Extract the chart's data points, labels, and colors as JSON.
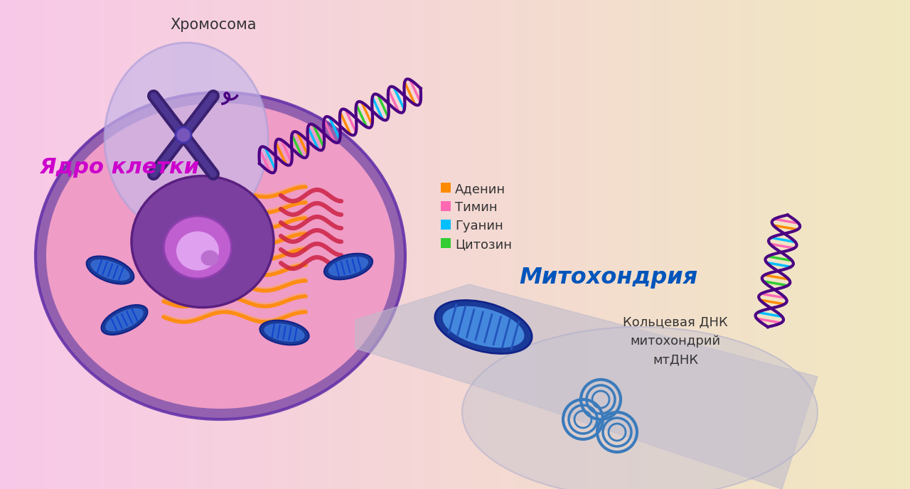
{
  "bg_color_left": "#f8c8e8",
  "bg_color_right": "#f0e8c0",
  "title_nucleus": "Ядро клетки",
  "title_chromosome": "Хромосома",
  "title_mitochondria": "Митохондрия",
  "title_mtdna": "Кольцевая ДНК\nмитохондрий\nмтДНК",
  "legend_items": [
    "Аденин",
    "Тимин",
    "Гуанин",
    "Цитозин"
  ],
  "legend_colors": [
    "#FF8C00",
    "#FF69B4",
    "#00BFFF",
    "#32CD32"
  ],
  "nucleus_label_color": "#CC00CC",
  "mitochondria_label_color": "#0055BB",
  "chromosome_label_color": "#333333",
  "mtdna_label_color": "#333333"
}
